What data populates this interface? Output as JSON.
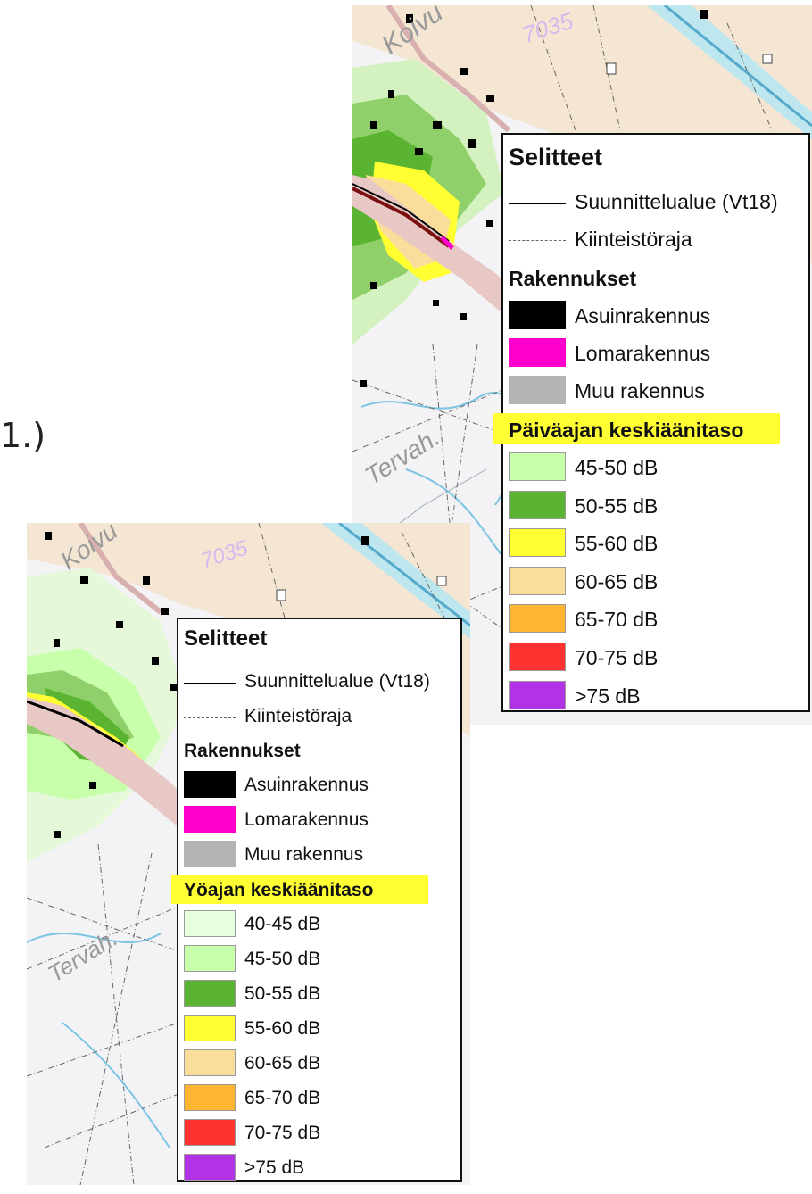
{
  "label_number": "1.)",
  "map_labels": {
    "road_number": "7035",
    "place_a": "Koivu",
    "place_b": "Tervah."
  },
  "legend_top": {
    "title": "Selitteet",
    "lines": [
      {
        "label": "Suunnittelualue (Vt18)",
        "style": "solid"
      },
      {
        "label": "Kiinteistöraja",
        "style": "dashdot"
      }
    ],
    "buildings_heading": "Rakennukset",
    "buildings": [
      {
        "label": "Asuinrakennus",
        "color": "#000000"
      },
      {
        "label": "Lomarakennus",
        "color": "#ff00cc"
      },
      {
        "label": "Muu rakennus",
        "color": "#b4b4b4"
      }
    ],
    "noise_heading": "Päiväajan keskiäänitaso",
    "noise": [
      {
        "label": "45-50 dB",
        "color": "#c8ffaa"
      },
      {
        "label": "50-55 dB",
        "color": "#5ab432"
      },
      {
        "label": "55-60 dB",
        "color": "#ffff32"
      },
      {
        "label": "60-65 dB",
        "color": "#fadc9b"
      },
      {
        "label": "65-70 dB",
        "color": "#ffb432"
      },
      {
        "label": "70-75 dB",
        "color": "#ff3232"
      },
      {
        "label": ">75 dB",
        "color": "#b432e6"
      }
    ]
  },
  "legend_bottom": {
    "title": "Selitteet",
    "lines": [
      {
        "label": "Suunnittelualue (Vt18)",
        "style": "solid"
      },
      {
        "label": "Kiinteistöraja",
        "style": "dashdot"
      }
    ],
    "buildings_heading": "Rakennukset",
    "buildings": [
      {
        "label": "Asuinrakennus",
        "color": "#000000"
      },
      {
        "label": "Lomarakennus",
        "color": "#ff00cc"
      },
      {
        "label": "Muu rakennus",
        "color": "#b4b4b4"
      }
    ],
    "noise_heading": "Yöajan keskiäänitaso",
    "noise": [
      {
        "label": "40-45 dB",
        "color": "#e6ffdc"
      },
      {
        "label": "45-50 dB",
        "color": "#c8ffaa"
      },
      {
        "label": "50-55 dB",
        "color": "#5ab432"
      },
      {
        "label": "55-60 dB",
        "color": "#ffff32"
      },
      {
        "label": "60-65 dB",
        "color": "#fadc9b"
      },
      {
        "label": "65-70 dB",
        "color": "#ffb432"
      },
      {
        "label": "70-75 dB",
        "color": "#ff3232"
      },
      {
        "label": ">75 dB",
        "color": "#b432e6"
      }
    ]
  }
}
